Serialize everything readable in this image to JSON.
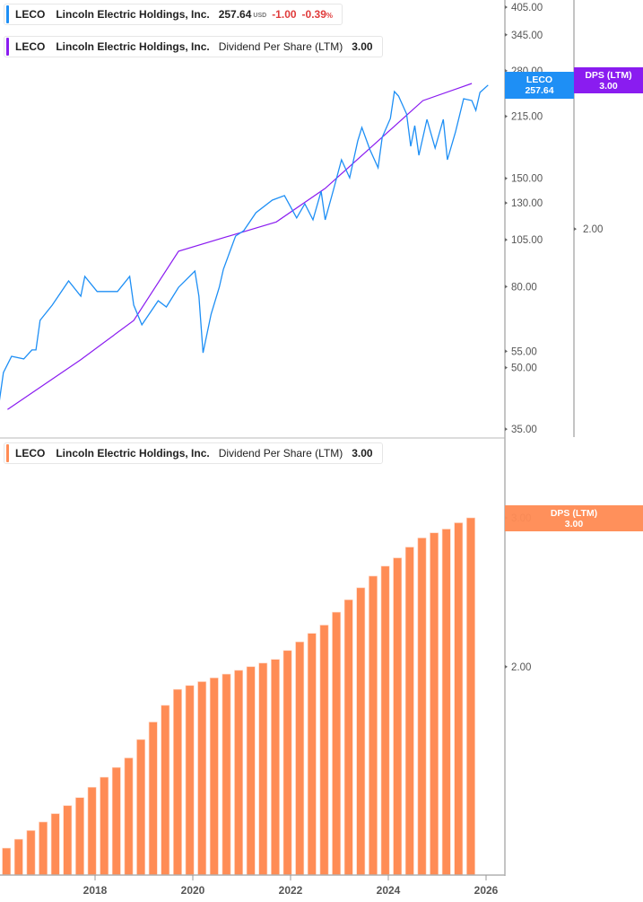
{
  "legends": {
    "price": {
      "symbol": "LECO",
      "name": "Lincoln Electric Holdings, Inc.",
      "price": "257.64",
      "currency": "USD",
      "change": "-1.00",
      "change_pct": "-0.39",
      "pct_sign": "%",
      "color": "#1e8ff5"
    },
    "dps_top": {
      "symbol": "LECO",
      "name": "Lincoln Electric Holdings, Inc.",
      "metric": "Dividend Per Share (LTM)",
      "value": "3.00",
      "color": "#8a1cf0"
    },
    "dps_bottom": {
      "symbol": "LECO",
      "name": "Lincoln Electric Holdings, Inc.",
      "metric": "Dividend Per Share (LTM)",
      "value": "3.00",
      "color": "#ff8c55"
    }
  },
  "badges": {
    "price": {
      "label": "LECO",
      "value": "257.64",
      "color": "#1e8ff5"
    },
    "dps_top": {
      "label": "DPS (LTM)",
      "value": "3.00",
      "color": "#8a1cf0"
    },
    "dps_bottom": {
      "label": "DPS (LTM)",
      "value": "3.00",
      "color": "#ff8c55"
    }
  },
  "chart_data": [
    {
      "type": "line",
      "title": "",
      "scale": "log",
      "price_axis_ticks": [
        "405.00",
        "345.00",
        "280.00",
        "215.00",
        "150.00",
        "130.00",
        "105.00",
        "80.00",
        "55.00",
        "50.00",
        "35.00"
      ],
      "dps_axis_ticks": [
        "3.00",
        "2.00"
      ],
      "series": [
        {
          "name": "LECO",
          "axis": "price",
          "color": "#1e8ff5",
          "x": [
            "2016-01",
            "2016-02",
            "2016-04",
            "2016-07",
            "2016-09",
            "2016-10",
            "2016-11",
            "2017-02",
            "2017-06",
            "2017-09",
            "2017-10",
            "2018-01",
            "2018-06",
            "2018-09",
            "2018-10",
            "2018-12",
            "2019-04",
            "2019-06",
            "2019-09",
            "2020-01",
            "2020-02",
            "2020-03",
            "2020-05",
            "2020-07",
            "2020-08",
            "2020-11",
            "2021-01",
            "2021-04",
            "2021-08",
            "2021-11",
            "2022-02",
            "2022-04",
            "2022-06",
            "2022-08",
            "2022-09",
            "2022-11",
            "2023-01",
            "2023-03",
            "2023-05",
            "2023-06",
            "2023-08",
            "2023-10",
            "2023-11",
            "2024-01",
            "2024-02",
            "2024-03",
            "2024-05",
            "2024-06",
            "2024-07",
            "2024-08",
            "2024-10",
            "2024-12",
            "2025-02",
            "2025-03",
            "2025-05",
            "2025-07",
            "2025-09",
            "2025-10",
            "2025-11",
            "2026-01"
          ],
          "y": [
            41.2,
            48.6,
            53.4,
            52.6,
            55.4,
            55.4,
            65.8,
            71.9,
            82.7,
            75.7,
            84.9,
            77.8,
            77.8,
            84.9,
            71.9,
            64.1,
            73.7,
            71.1,
            79.7,
            87.6,
            75.7,
            54.5,
            68.2,
            79.7,
            88.5,
            107.3,
            110.7,
            122.9,
            132.2,
            135.7,
            119.2,
            129.4,
            117.9,
            139.2,
            117.9,
            140.0,
            167.1,
            150.5,
            186.3,
            201.5,
            176.9,
            159.5,
            190.3,
            212.3,
            248.2,
            241.8,
            217.9,
            180.7,
            203.6,
            171.5,
            211.2,
            178.8,
            211.2,
            167.1,
            196.3,
            238.1,
            235.6,
            222.5,
            246.9,
            257.64
          ]
        },
        {
          "name": "DPS (LTM)",
          "axis": "dps",
          "color": "#8a1cf0",
          "x": [
            "2016-03",
            "2017-09",
            "2018-10",
            "2019-09",
            "2021-09",
            "2022-09",
            "2024-09",
            "2025-09"
          ],
          "y": [
            1.21,
            1.39,
            1.55,
            1.88,
            2.04,
            2.24,
            2.86,
            3.0
          ]
        }
      ]
    },
    {
      "type": "bar",
      "title": "",
      "scale": "log",
      "color": "#ff8c55",
      "y_axis_ticks": [
        "3.00",
        "2.00"
      ],
      "x_axis_ticks": [
        "2018",
        "2020",
        "2022",
        "2024",
        "2026"
      ],
      "series": [
        {
          "name": "DPS (LTM)",
          "x": [
            "2015-12",
            "2016-03",
            "2016-06",
            "2016-09",
            "2016-12",
            "2017-03",
            "2017-06",
            "2017-09",
            "2017-12",
            "2018-03",
            "2018-06",
            "2018-09",
            "2018-12",
            "2019-03",
            "2019-06",
            "2019-09",
            "2019-12",
            "2020-03",
            "2020-06",
            "2020-09",
            "2020-12",
            "2021-03",
            "2021-06",
            "2021-09",
            "2021-12",
            "2022-03",
            "2022-06",
            "2022-09",
            "2022-12",
            "2023-03",
            "2023-06",
            "2023-09",
            "2023-12",
            "2024-03",
            "2024-06",
            "2024-09",
            "2024-12",
            "2025-03",
            "2025-06",
            "2025-09"
          ],
          "values": [
            1.19,
            1.22,
            1.25,
            1.28,
            1.31,
            1.34,
            1.37,
            1.4,
            1.44,
            1.48,
            1.52,
            1.56,
            1.64,
            1.72,
            1.8,
            1.88,
            1.9,
            1.92,
            1.94,
            1.96,
            1.98,
            2.0,
            2.02,
            2.04,
            2.09,
            2.14,
            2.19,
            2.24,
            2.32,
            2.4,
            2.48,
            2.56,
            2.63,
            2.69,
            2.77,
            2.84,
            2.88,
            2.91,
            2.96,
            3.0
          ]
        }
      ]
    }
  ]
}
